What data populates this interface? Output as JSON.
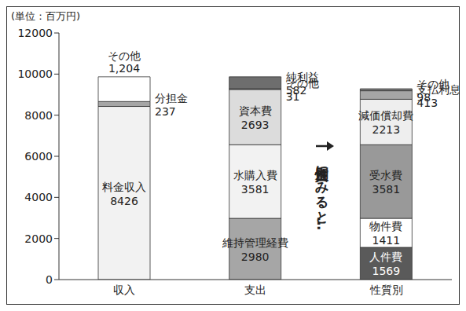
{
  "chart_data": {
    "type": "bar",
    "stacked": true,
    "data_labels": true,
    "grid": false,
    "y_label": "(単位：百万円)",
    "annotation": "性質別にみると…",
    "categories": [
      "収入",
      "支出",
      "性質別"
    ],
    "ylim": [
      0,
      12000
    ],
    "yticks": [
      0,
      2000,
      4000,
      6000,
      8000,
      10000,
      12000
    ],
    "series": [
      {
        "name": "料金収入",
        "color": "#f2f2f2",
        "values": [
          8426,
          null,
          null
        ]
      },
      {
        "name": "分担金",
        "color": "#a6a6a6",
        "values": [
          237,
          null,
          null
        ]
      },
      {
        "name": "その他",
        "color": "#ffffff",
        "values": [
          1204,
          null,
          null
        ],
        "value_labels": [
          "1,204",
          null,
          null
        ]
      },
      {
        "name": "維持管理経費",
        "color": "#a6a6a6",
        "values": [
          null,
          2980,
          null
        ]
      },
      {
        "name": "水購入費",
        "color": "#f2f2f2",
        "values": [
          null,
          3581,
          null
        ]
      },
      {
        "name": "資本費",
        "color": "#dcdcdc",
        "values": [
          null,
          2693,
          null
        ]
      },
      {
        "name": "その他",
        "color": "#a6a6a6",
        "values": [
          null,
          31,
          null
        ]
      },
      {
        "name": "純利益",
        "color": "#6e6e6e",
        "values": [
          null,
          582,
          null
        ]
      },
      {
        "name": "人件費",
        "color": "#5a5a5a",
        "values": [
          null,
          null,
          1569
        ]
      },
      {
        "name": "物件費",
        "color": "#ffffff",
        "values": [
          null,
          null,
          1411
        ]
      },
      {
        "name": "受水費",
        "color": "#999999",
        "values": [
          null,
          null,
          3581
        ]
      },
      {
        "name": "減価償却費",
        "color": "#eeeeee",
        "values": [
          null,
          null,
          2213
        ]
      },
      {
        "name": "支払利息",
        "color": "#a6a6a6",
        "values": [
          null,
          null,
          413
        ]
      },
      {
        "name": "その他",
        "color": "#7a7a7a",
        "values": [
          null,
          null,
          98
        ]
      }
    ]
  }
}
